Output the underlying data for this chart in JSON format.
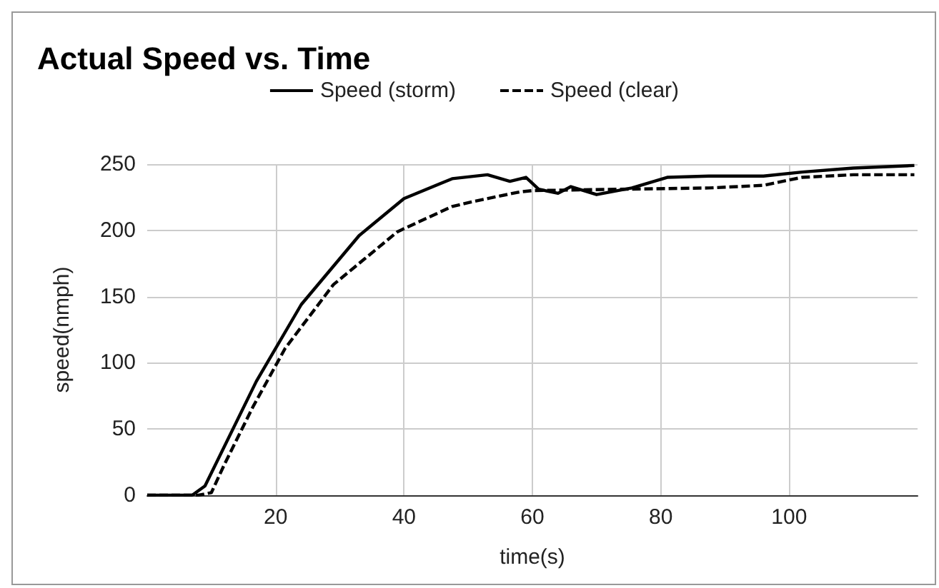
{
  "chart_data": {
    "type": "line",
    "title": "Actual Speed vs. Time",
    "xlabel": "time(s)",
    "ylabel": "speed(nmph)",
    "xlim": [
      0,
      120
    ],
    "xticks": [
      20,
      40,
      60,
      80,
      100
    ],
    "ylim": [
      0,
      250
    ],
    "yticks": [
      0,
      50,
      100,
      150,
      200,
      250
    ],
    "grid": true,
    "legend": "top",
    "marker": "none",
    "series": [
      {
        "name": "Speed (storm)",
        "color": "#000000",
        "line_style": "solid",
        "x": [
          0,
          7,
          9,
          17,
          24,
          33,
          40,
          47.5,
          53,
          56.5,
          59,
          61,
          64,
          66,
          70,
          75.5,
          81,
          87.5,
          96,
          102,
          110,
          119.5
        ],
        "values": [
          0,
          0,
          7,
          86,
          144,
          196,
          224,
          239,
          242,
          237,
          240,
          231,
          228,
          233,
          227,
          232,
          240,
          241,
          241,
          244,
          247,
          249
        ]
      },
      {
        "name": "Speed (clear)",
        "color": "#000000",
        "line_style": "dashed",
        "x": [
          0,
          8,
          10,
          12,
          16.5,
          21.5,
          29,
          39,
          47.5,
          51,
          58,
          60,
          73,
          87.5,
          96,
          102,
          110,
          119.5
        ],
        "values": [
          0,
          0,
          2,
          23,
          67,
          111,
          159,
          199,
          218,
          222,
          229,
          230,
          231,
          232,
          234,
          240,
          242,
          242
        ]
      }
    ]
  }
}
